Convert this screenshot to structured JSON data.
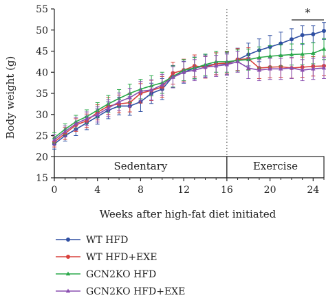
{
  "chart_data": {
    "type": "line",
    "xlabel": "Weeks after high-fat diet initiated",
    "ylabel": "Body weight (g)",
    "xlim": [
      0,
      25
    ],
    "ylim": [
      15,
      55
    ],
    "xticks": [
      0,
      4,
      8,
      12,
      16,
      20,
      24
    ],
    "yticks": [
      15,
      20,
      25,
      30,
      35,
      40,
      45,
      50,
      55
    ],
    "phases": [
      {
        "label": "Sedentary",
        "start": 0,
        "end": 16
      },
      {
        "label": "Exercise",
        "start": 16,
        "end": 25
      }
    ],
    "significance": {
      "label": "*",
      "from": 22,
      "to": 25
    },
    "divider_x": 16,
    "grid": false,
    "legend_position": "bottom",
    "x": [
      0,
      1,
      2,
      3,
      4,
      5,
      6,
      7,
      8,
      9,
      10,
      11,
      12,
      13,
      14,
      15,
      16,
      17,
      18,
      19,
      20,
      21,
      22,
      23,
      24,
      25
    ],
    "series": [
      {
        "name": "WT HFD",
        "color": "#2f4fa2",
        "marker": "circle",
        "values": [
          23,
          25,
          26.5,
          28,
          29.5,
          31,
          32,
          32,
          33,
          35,
          36,
          39,
          40,
          41,
          41.5,
          42,
          42,
          43,
          44.2,
          45.2,
          46,
          46.8,
          47.8,
          48.8,
          49,
          49.8
        ],
        "errors": [
          1.2,
          1.3,
          1.5,
          1.6,
          1.8,
          2.0,
          2.1,
          2.2,
          2.3,
          2.4,
          2.5,
          2.6,
          2.6,
          2.6,
          2.6,
          2.6,
          2.6,
          2.7,
          2.7,
          2.7,
          2.7,
          2.7,
          2.5,
          2.2,
          2.0,
          2.0
        ]
      },
      {
        "name": "WT HFD+EXE",
        "color": "#d9413c",
        "marker": "circle",
        "values": [
          23.5,
          25.5,
          27.5,
          28.5,
          30.5,
          32,
          32.5,
          32.8,
          35,
          35.7,
          36.5,
          39.8,
          40.5,
          41.5,
          41.2,
          42,
          42.2,
          43,
          43.2,
          41,
          41.2,
          41.3,
          41,
          41.2,
          41.4,
          41.5
        ],
        "errors": [
          1.2,
          1.4,
          1.5,
          1.6,
          1.8,
          2.0,
          2.1,
          2.2,
          2.3,
          2.4,
          2.5,
          2.6,
          2.6,
          2.6,
          2.6,
          2.6,
          2.6,
          2.6,
          2.6,
          2.5,
          2.5,
          2.5,
          2.4,
          2.4,
          2.3,
          2.3
        ]
      },
      {
        "name": "GCN2KO HFD",
        "color": "#2aa84a",
        "marker": "triangle",
        "values": [
          24.5,
          26.5,
          28.3,
          29.5,
          31,
          32.5,
          33.8,
          35,
          36,
          36.8,
          37.5,
          39,
          40.5,
          41,
          41.8,
          42.5,
          42.5,
          42.8,
          43,
          43.5,
          43.8,
          44,
          44.2,
          44.3,
          44.5,
          45.5
        ],
        "errors": [
          1.2,
          1.3,
          1.5,
          1.6,
          1.8,
          2.0,
          2.1,
          2.2,
          2.3,
          2.4,
          2.5,
          2.5,
          2.5,
          2.5,
          2.5,
          2.5,
          2.5,
          2.5,
          2.5,
          2.5,
          2.5,
          2.5,
          2.5,
          2.5,
          2.5,
          2.5
        ]
      },
      {
        "name": "GCN2KO HFD+EXE",
        "color": "#8a4fb0",
        "marker": "triangle",
        "values": [
          24,
          26,
          27.8,
          29,
          30,
          31.5,
          33,
          34,
          35.5,
          35.8,
          37,
          38.8,
          40,
          40.5,
          41.2,
          41.5,
          41.8,
          42.5,
          41,
          40.5,
          40.8,
          40.8,
          41,
          40.5,
          40.8,
          41
        ],
        "errors": [
          1.2,
          1.3,
          1.5,
          1.6,
          1.8,
          2.0,
          2.1,
          2.2,
          2.3,
          2.4,
          2.5,
          2.5,
          2.5,
          2.5,
          2.5,
          2.5,
          2.5,
          2.5,
          2.5,
          2.5,
          2.5,
          2.5,
          2.5,
          2.5,
          2.5,
          2.5
        ]
      }
    ]
  }
}
